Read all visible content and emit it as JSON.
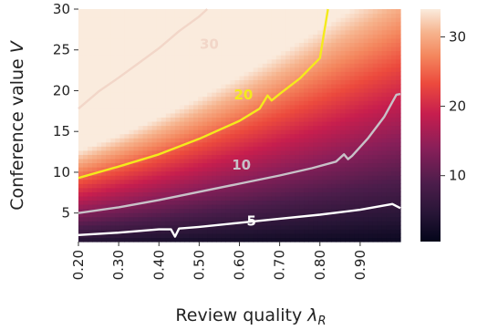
{
  "chart_data": {
    "type": "heatmap",
    "xlabel": "Review quality",
    "xlabel_symbol": "λ",
    "xlabel_subscript": "R",
    "ylabel": "Conference value",
    "ylabel_symbol": "V",
    "x_range": [
      0.2,
      1.0
    ],
    "y_range": [
      1.5,
      30
    ],
    "x_ticks": [
      0.2,
      0.3,
      0.4,
      0.5,
      0.6,
      0.7,
      0.8,
      0.9
    ],
    "x_tick_labels": [
      "0.20",
      "0.30",
      "0.40",
      "0.50",
      "0.60",
      "0.70",
      "0.80",
      "0.90"
    ],
    "y_ticks": [
      5,
      10,
      15,
      20,
      25,
      30
    ],
    "y_tick_labels": [
      "5",
      "10",
      "15",
      "20",
      "25",
      "30"
    ],
    "colorbar": {
      "colormap": "rocket",
      "range": [
        0.5,
        34
      ],
      "ticks": [
        10,
        20,
        30
      ],
      "tick_labels": [
        "10",
        "20",
        "30"
      ]
    },
    "contours": [
      {
        "level": 5,
        "label": "5",
        "color": "#ffffff",
        "label_at": [
          0.63,
          4.0
        ],
        "points": [
          [
            0.2,
            2.3
          ],
          [
            0.3,
            2.6
          ],
          [
            0.4,
            3.0
          ],
          [
            0.43,
            3.0
          ],
          [
            0.44,
            2.1
          ],
          [
            0.45,
            3.1
          ],
          [
            0.5,
            3.3
          ],
          [
            0.6,
            3.8
          ],
          [
            0.7,
            4.3
          ],
          [
            0.8,
            4.8
          ],
          [
            0.9,
            5.4
          ],
          [
            0.98,
            6.1
          ],
          [
            1.0,
            5.6
          ]
        ]
      },
      {
        "level": 10,
        "label": "10",
        "color": "#c8c1c8",
        "label_at": [
          0.605,
          10.9
        ],
        "points": [
          [
            0.2,
            5.0
          ],
          [
            0.3,
            5.7
          ],
          [
            0.4,
            6.6
          ],
          [
            0.5,
            7.6
          ],
          [
            0.6,
            8.6
          ],
          [
            0.7,
            9.6
          ],
          [
            0.78,
            10.5
          ],
          [
            0.84,
            11.3
          ],
          [
            0.86,
            12.2
          ],
          [
            0.87,
            11.6
          ],
          [
            0.88,
            12.0
          ],
          [
            0.92,
            14.2
          ],
          [
            0.96,
            16.8
          ],
          [
            0.99,
            19.5
          ],
          [
            1.0,
            19.6
          ]
        ]
      },
      {
        "level": 20,
        "label": "20",
        "color": "#f4ea1c",
        "label_at": [
          0.61,
          19.5
        ],
        "points": [
          [
            0.2,
            9.3
          ],
          [
            0.3,
            10.7
          ],
          [
            0.4,
            12.2
          ],
          [
            0.5,
            14.1
          ],
          [
            0.6,
            16.3
          ],
          [
            0.65,
            17.8
          ],
          [
            0.67,
            19.4
          ],
          [
            0.68,
            18.8
          ],
          [
            0.7,
            19.6
          ],
          [
            0.75,
            21.5
          ],
          [
            0.8,
            24.0
          ],
          [
            0.81,
            27.0
          ],
          [
            0.82,
            30.0
          ]
        ]
      },
      {
        "level": 30,
        "label": "30",
        "color": "#f2d6c8",
        "label_at": [
          0.525,
          25.7
        ],
        "points": [
          [
            0.2,
            17.8
          ],
          [
            0.25,
            19.9
          ],
          [
            0.3,
            21.6
          ],
          [
            0.35,
            23.4
          ],
          [
            0.4,
            25.2
          ],
          [
            0.45,
            27.3
          ],
          [
            0.5,
            29.1
          ],
          [
            0.52,
            30.0
          ]
        ]
      }
    ]
  }
}
